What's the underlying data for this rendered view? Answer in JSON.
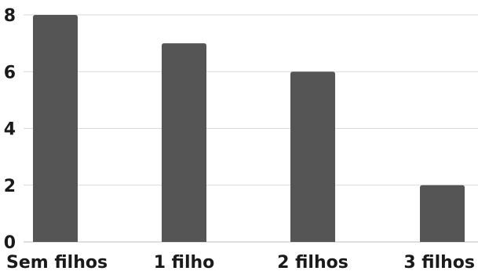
{
  "chart_data": {
    "type": "bar",
    "categories": [
      "Sem filhos",
      "1 filho",
      "2 filhos",
      "3 filhos"
    ],
    "values": [
      8,
      7,
      6,
      2
    ],
    "title": "",
    "xlabel": "",
    "ylabel": "",
    "ylim": [
      0,
      8
    ],
    "yticks": [
      0,
      2,
      4,
      6,
      8
    ],
    "grid": true,
    "bar_color": "#555555"
  }
}
